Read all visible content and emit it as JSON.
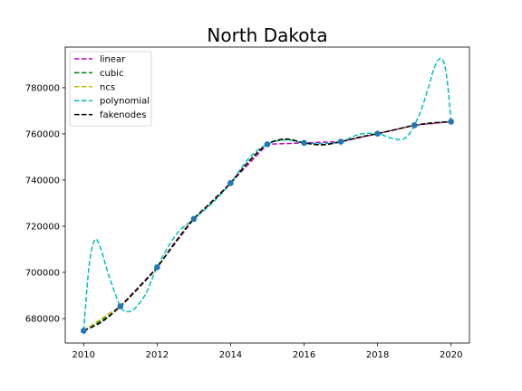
{
  "chart_data": {
    "type": "line",
    "title": "North Dakota",
    "xlabel": "",
    "ylabel": "",
    "xlim": [
      2009.5,
      2020.5
    ],
    "ylim": [
      669400,
      797600
    ],
    "xticks": [
      2010,
      2012,
      2014,
      2016,
      2018,
      2020
    ],
    "xtick_labels": [
      "2010",
      "2012",
      "2014",
      "2016",
      "2018",
      "2020"
    ],
    "yticks": [
      680000,
      700000,
      720000,
      740000,
      760000,
      780000
    ],
    "ytick_labels": [
      "680000",
      "700000",
      "720000",
      "740000",
      "760000",
      "780000"
    ],
    "grid": false,
    "legend_position": "upper-left",
    "data_points": {
      "x": [
        2010,
        2011,
        2012,
        2013,
        2014,
        2015,
        2016,
        2017,
        2018,
        2019,
        2020
      ],
      "y": [
        674700,
        685300,
        702200,
        723200,
        738700,
        755500,
        756100,
        756600,
        760100,
        763700,
        765300
      ],
      "color": "#1f77b4"
    },
    "series": [
      {
        "name": "linear",
        "color": "#bf00bf",
        "x": [
          2010,
          2011,
          2012,
          2013,
          2014,
          2015,
          2016,
          2017,
          2018,
          2019,
          2020
        ],
        "y": [
          674700,
          685300,
          702200,
          723200,
          738700,
          755500,
          756100,
          756600,
          760100,
          763700,
          765300
        ]
      },
      {
        "name": "cubic",
        "color": "#008000",
        "x": [
          2010,
          2010.5,
          2011,
          2011.5,
          2012,
          2012.5,
          2013,
          2013.5,
          2014,
          2014.5,
          2015,
          2015.5,
          2016,
          2016.5,
          2017,
          2017.5,
          2018,
          2018.5,
          2019,
          2019.5,
          2020
        ],
        "y": [
          674700,
          679300,
          685300,
          693300,
          702200,
          713300,
          723200,
          730600,
          738700,
          748200,
          755500,
          757800,
          756100,
          755200,
          756600,
          758600,
          760100,
          761900,
          763700,
          764800,
          765300
        ]
      },
      {
        "name": "ncs",
        "color": "#bfbf00",
        "x": [
          2010,
          2010.5,
          2011,
          2011.5,
          2012,
          2012.5,
          2013,
          2013.5,
          2014,
          2014.5,
          2015,
          2015.5,
          2016,
          2016.5,
          2017,
          2017.5,
          2018,
          2018.5,
          2019,
          2019.5,
          2020
        ],
        "y": [
          674700,
          680000,
          685300,
          693400,
          702200,
          713200,
          723200,
          730700,
          738700,
          748100,
          755500,
          757700,
          756100,
          755300,
          756600,
          758500,
          760100,
          761900,
          763700,
          764700,
          765300
        ]
      },
      {
        "name": "polynomial",
        "color": "#00bfbf",
        "x": [
          2010,
          2010.15,
          2010.3,
          2010.45,
          2010.7,
          2011,
          2011.2,
          2011.4,
          2011.7,
          2012,
          2012.5,
          2013,
          2013.5,
          2014,
          2014.5,
          2015,
          2015.5,
          2016,
          2016.5,
          2017,
          2017.5,
          2018,
          2018.3,
          2018.6,
          2018.8,
          2019,
          2019.2,
          2019.4,
          2019.55,
          2019.7,
          2019.8,
          2019.87,
          2019.93,
          2020
        ],
        "y": [
          674700,
          703000,
          714000,
          711000,
          698000,
          685300,
          683000,
          684500,
          691000,
          702200,
          716000,
          723200,
          730000,
          738700,
          749500,
          755500,
          757400,
          756100,
          755800,
          756600,
          759800,
          760100,
          758500,
          757500,
          758800,
          763700,
          771000,
          781000,
          789000,
          792700,
          791000,
          786000,
          778000,
          765300
        ]
      },
      {
        "name": "fakenodes",
        "color": "#000000",
        "x": [
          2010,
          2010.5,
          2011,
          2011.5,
          2012,
          2012.5,
          2013,
          2013.5,
          2014,
          2014.5,
          2015,
          2015.5,
          2016,
          2016.5,
          2017,
          2017.5,
          2018,
          2018.5,
          2019,
          2019.5,
          2020
        ],
        "y": [
          674700,
          678600,
          685300,
          693400,
          702200,
          713200,
          723200,
          730700,
          738700,
          748100,
          755500,
          757700,
          756100,
          755300,
          756600,
          758500,
          760100,
          761900,
          763700,
          764700,
          765300
        ]
      }
    ]
  }
}
